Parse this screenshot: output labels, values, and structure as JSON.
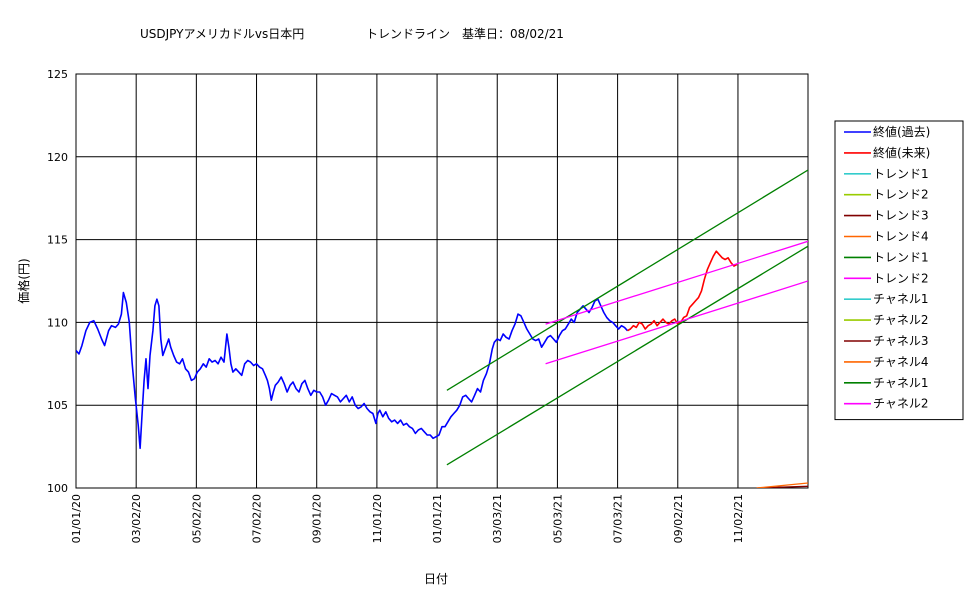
{
  "chart_data": {
    "type": "line",
    "title_left": "USDJPYアメリカドルvs日本円",
    "title_right": "トレンドライン　基準日：08/02/21",
    "xlabel": "日付",
    "ylabel": "価格(円)",
    "ylim": [
      100,
      125
    ],
    "yticks": [
      "100",
      "105",
      "110",
      "115",
      "120",
      "125"
    ],
    "xtick_labels": [
      "01/01/20",
      "03/02/20",
      "05/02/20",
      "07/02/20",
      "09/01/20",
      "11/01/20",
      "01/01/21",
      "03/03/21",
      "05/03/21",
      "07/03/21",
      "09/02/21",
      "11/02/21"
    ],
    "xticks_days": [
      0,
      61,
      122,
      183,
      244,
      305,
      366,
      427,
      488,
      549,
      610,
      671
    ],
    "xlim_days": [
      0,
      742
    ],
    "grid": true,
    "legend_position": "right",
    "legend": [
      {
        "name": "終値(過去)",
        "color": "#0000ff"
      },
      {
        "name": "終値(未来)",
        "color": "#ff0000"
      },
      {
        "name": "トレンド1",
        "color": "#33cccc"
      },
      {
        "name": "トレンド2",
        "color": "#99cc00"
      },
      {
        "name": "トレンド3",
        "color": "#800000"
      },
      {
        "name": "トレンド4",
        "color": "#ff6600"
      },
      {
        "name": "トレンド1",
        "color": "#008000"
      },
      {
        "name": "トレンド2",
        "color": "#ff00ff"
      },
      {
        "name": "チャネル1",
        "color": "#33cccc"
      },
      {
        "name": "チャネル2",
        "color": "#99cc00"
      },
      {
        "name": "チャネル3",
        "color": "#800000"
      },
      {
        "name": "チャネル4",
        "color": "#ff6600"
      },
      {
        "name": "チャネル1",
        "color": "#008000"
      },
      {
        "name": "チャネル2",
        "color": "#ff00ff"
      }
    ],
    "series": [
      {
        "legend_index": 0,
        "color": "#0000ff",
        "points": [
          [
            0,
            108.3
          ],
          [
            3,
            108.1
          ],
          [
            6,
            108.6
          ],
          [
            10,
            109.5
          ],
          [
            14,
            110.0
          ],
          [
            18,
            110.1
          ],
          [
            22,
            109.6
          ],
          [
            26,
            109.0
          ],
          [
            29,
            108.6
          ],
          [
            33,
            109.5
          ],
          [
            36,
            109.8
          ],
          [
            40,
            109.7
          ],
          [
            43,
            109.9
          ],
          [
            46,
            110.5
          ],
          [
            48,
            111.8
          ],
          [
            51,
            111.2
          ],
          [
            54,
            110.0
          ],
          [
            57,
            107.5
          ],
          [
            60,
            105.5
          ],
          [
            63,
            103.8
          ],
          [
            65,
            102.4
          ],
          [
            67,
            104.5
          ],
          [
            69,
            106.5
          ],
          [
            71,
            107.8
          ],
          [
            73,
            106.0
          ],
          [
            75,
            108.0
          ],
          [
            78,
            109.5
          ],
          [
            80,
            111.0
          ],
          [
            82,
            111.4
          ],
          [
            84,
            111.0
          ],
          [
            86,
            109.0
          ],
          [
            88,
            108.0
          ],
          [
            91,
            108.5
          ],
          [
            94,
            109.0
          ],
          [
            96,
            108.5
          ],
          [
            99,
            108.0
          ],
          [
            102,
            107.6
          ],
          [
            105,
            107.5
          ],
          [
            108,
            107.8
          ],
          [
            111,
            107.2
          ],
          [
            114,
            107.0
          ],
          [
            117,
            106.5
          ],
          [
            120,
            106.6
          ],
          [
            123,
            107.0
          ],
          [
            126,
            107.2
          ],
          [
            129,
            107.5
          ],
          [
            132,
            107.3
          ],
          [
            135,
            107.8
          ],
          [
            138,
            107.6
          ],
          [
            141,
            107.7
          ],
          [
            144,
            107.5
          ],
          [
            147,
            107.9
          ],
          [
            150,
            107.6
          ],
          [
            153,
            109.3
          ],
          [
            155,
            108.5
          ],
          [
            157,
            107.5
          ],
          [
            159,
            107.0
          ],
          [
            162,
            107.2
          ],
          [
            165,
            107.0
          ],
          [
            168,
            106.8
          ],
          [
            171,
            107.5
          ],
          [
            174,
            107.7
          ],
          [
            177,
            107.6
          ],
          [
            180,
            107.4
          ],
          [
            183,
            107.5
          ],
          [
            186,
            107.3
          ],
          [
            189,
            107.2
          ],
          [
            192,
            106.8
          ],
          [
            194,
            106.5
          ],
          [
            196,
            106.0
          ],
          [
            198,
            105.3
          ],
          [
            200,
            105.8
          ],
          [
            202,
            106.2
          ],
          [
            205,
            106.4
          ],
          [
            208,
            106.7
          ],
          [
            211,
            106.3
          ],
          [
            214,
            105.8
          ],
          [
            217,
            106.2
          ],
          [
            220,
            106.4
          ],
          [
            223,
            106.0
          ],
          [
            226,
            105.8
          ],
          [
            229,
            106.3
          ],
          [
            232,
            106.5
          ],
          [
            235,
            106.0
          ],
          [
            238,
            105.6
          ],
          [
            241,
            105.9
          ],
          [
            244,
            105.8
          ],
          [
            247,
            105.8
          ],
          [
            250,
            105.5
          ],
          [
            253,
            105.0
          ],
          [
            256,
            105.3
          ],
          [
            259,
            105.7
          ],
          [
            262,
            105.6
          ],
          [
            265,
            105.5
          ],
          [
            268,
            105.2
          ],
          [
            271,
            105.4
          ],
          [
            274,
            105.6
          ],
          [
            277,
            105.2
          ],
          [
            280,
            105.5
          ],
          [
            283,
            105.0
          ],
          [
            286,
            104.8
          ],
          [
            289,
            104.9
          ],
          [
            292,
            105.1
          ],
          [
            295,
            104.8
          ],
          [
            298,
            104.6
          ],
          [
            301,
            104.5
          ],
          [
            304,
            103.9
          ],
          [
            306,
            104.5
          ],
          [
            308,
            104.7
          ],
          [
            311,
            104.3
          ],
          [
            314,
            104.6
          ],
          [
            317,
            104.2
          ],
          [
            320,
            104.0
          ],
          [
            323,
            104.1
          ],
          [
            326,
            103.9
          ],
          [
            329,
            104.1
          ],
          [
            332,
            103.8
          ],
          [
            335,
            103.9
          ],
          [
            338,
            103.7
          ],
          [
            341,
            103.6
          ],
          [
            344,
            103.3
          ],
          [
            347,
            103.5
          ],
          [
            350,
            103.6
          ],
          [
            353,
            103.4
          ],
          [
            356,
            103.2
          ],
          [
            359,
            103.2
          ],
          [
            362,
            103.0
          ],
          [
            365,
            103.1
          ],
          [
            368,
            103.2
          ],
          [
            371,
            103.7
          ],
          [
            374,
            103.7
          ],
          [
            377,
            104.0
          ],
          [
            380,
            104.3
          ],
          [
            383,
            104.5
          ],
          [
            386,
            104.7
          ],
          [
            389,
            105.0
          ],
          [
            392,
            105.5
          ],
          [
            395,
            105.6
          ],
          [
            398,
            105.4
          ],
          [
            401,
            105.2
          ],
          [
            404,
            105.6
          ],
          [
            407,
            106.0
          ],
          [
            410,
            105.8
          ],
          [
            413,
            106.5
          ],
          [
            416,
            106.9
          ],
          [
            419,
            107.5
          ],
          [
            422,
            108.4
          ],
          [
            424,
            108.8
          ],
          [
            427,
            109.0
          ],
          [
            430,
            108.9
          ],
          [
            433,
            109.3
          ],
          [
            436,
            109.1
          ],
          [
            439,
            109.0
          ],
          [
            442,
            109.5
          ],
          [
            445,
            109.9
          ],
          [
            448,
            110.5
          ],
          [
            451,
            110.4
          ],
          [
            454,
            110.0
          ],
          [
            457,
            109.6
          ],
          [
            460,
            109.3
          ],
          [
            463,
            109.0
          ],
          [
            466,
            108.9
          ],
          [
            469,
            109.0
          ],
          [
            472,
            108.5
          ],
          [
            475,
            108.8
          ],
          [
            478,
            109.1
          ],
          [
            481,
            109.2
          ],
          [
            484,
            109.0
          ],
          [
            487,
            108.8
          ],
          [
            490,
            109.2
          ],
          [
            493,
            109.5
          ],
          [
            496,
            109.6
          ],
          [
            499,
            109.9
          ],
          [
            502,
            110.2
          ],
          [
            505,
            110.0
          ],
          [
            508,
            110.6
          ],
          [
            511,
            110.8
          ],
          [
            514,
            111.0
          ],
          [
            517,
            110.8
          ],
          [
            520,
            110.6
          ],
          [
            523,
            110.9
          ],
          [
            526,
            111.3
          ],
          [
            529,
            111.4
          ],
          [
            532,
            111.0
          ],
          [
            535,
            110.6
          ],
          [
            538,
            110.3
          ],
          [
            541,
            110.1
          ],
          [
            544,
            110.0
          ],
          [
            547,
            109.8
          ],
          [
            550,
            109.6
          ],
          [
            553,
            109.8
          ],
          [
            556,
            109.7
          ],
          [
            559,
            109.5
          ]
        ]
      },
      {
        "legend_index": 1,
        "color": "#ff0000",
        "points": [
          [
            559,
            109.5
          ],
          [
            562,
            109.6
          ],
          [
            565,
            109.8
          ],
          [
            568,
            109.7
          ],
          [
            571,
            110.0
          ],
          [
            574,
            109.9
          ],
          [
            577,
            109.6
          ],
          [
            580,
            109.8
          ],
          [
            583,
            109.9
          ],
          [
            586,
            110.1
          ],
          [
            589,
            109.8
          ],
          [
            592,
            110.0
          ],
          [
            595,
            110.2
          ],
          [
            598,
            110.0
          ],
          [
            601,
            109.9
          ],
          [
            604,
            110.1
          ],
          [
            607,
            110.2
          ],
          [
            610,
            109.9
          ],
          [
            613,
            110.0
          ],
          [
            616,
            110.3
          ],
          [
            619,
            110.4
          ],
          [
            622,
            110.9
          ],
          [
            625,
            111.1
          ],
          [
            628,
            111.3
          ],
          [
            631,
            111.5
          ],
          [
            634,
            111.9
          ],
          [
            637,
            112.6
          ],
          [
            640,
            113.2
          ],
          [
            643,
            113.6
          ],
          [
            646,
            114.0
          ],
          [
            649,
            114.3
          ],
          [
            652,
            114.1
          ],
          [
            655,
            113.9
          ],
          [
            658,
            113.8
          ],
          [
            661,
            113.9
          ],
          [
            664,
            113.6
          ],
          [
            667,
            113.4
          ],
          [
            670,
            113.5
          ]
        ]
      },
      {
        "legend_index": 6,
        "color": "#008000",
        "points": [
          [
            376,
            105.9
          ],
          [
            742,
            119.2
          ]
        ]
      },
      {
        "legend_index": 6,
        "color": "#008000",
        "points": [
          [
            376,
            101.4
          ],
          [
            742,
            114.6
          ]
        ]
      },
      {
        "legend_index": 7,
        "color": "#ff00ff",
        "points": [
          [
            476,
            109.9
          ],
          [
            742,
            114.9
          ]
        ]
      },
      {
        "legend_index": 7,
        "color": "#ff00ff",
        "points": [
          [
            476,
            107.5
          ],
          [
            742,
            112.5
          ]
        ]
      },
      {
        "legend_index": 2,
        "color": "#800000",
        "points": [
          [
            690,
            100.0
          ],
          [
            742,
            100.1
          ]
        ]
      },
      {
        "legend_index": 3,
        "color": "#ff6600",
        "points": [
          [
            690,
            100.0
          ],
          [
            742,
            100.3
          ]
        ]
      }
    ]
  }
}
